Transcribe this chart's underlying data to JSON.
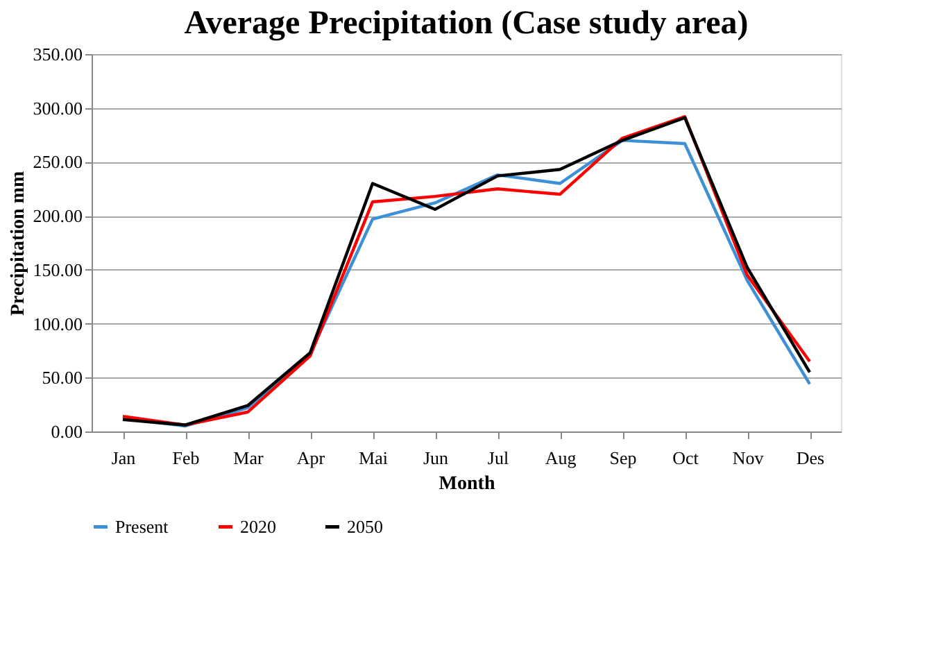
{
  "chart_data": {
    "type": "line",
    "title": "Average Precipitation (Case study area)",
    "xlabel": "Month",
    "ylabel": "Precipitation mm",
    "categories": [
      "Jan",
      "Feb",
      "Mar",
      "Apr",
      "Mai",
      "Jun",
      "Jul",
      "Aug",
      "Sep",
      "Oct",
      "Nov",
      "Des"
    ],
    "series": [
      {
        "name": "Present",
        "color": "#3d8fd6",
        "values": [
          12,
          5,
          22,
          72,
          197,
          212,
          238,
          230,
          270,
          267,
          140,
          44
        ]
      },
      {
        "name": "2020",
        "color": "#ff0000",
        "values": [
          14,
          6,
          18,
          70,
          213,
          218,
          225,
          220,
          272,
          292,
          145,
          65
        ]
      },
      {
        "name": "2050",
        "color": "#000000",
        "values": [
          11,
          6,
          24,
          73,
          230,
          206,
          237,
          243,
          270,
          291,
          152,
          55
        ]
      }
    ],
    "ylim": [
      0,
      350
    ],
    "yticks": [
      {
        "value": 0,
        "label": "0.00"
      },
      {
        "value": 50,
        "label": "50.00"
      },
      {
        "value": 100,
        "label": "100.00"
      },
      {
        "value": 150,
        "label": "150.00"
      },
      {
        "value": 200,
        "label": "200.00"
      },
      {
        "value": 250,
        "label": "250.00"
      },
      {
        "value": 300,
        "label": "300.00"
      },
      {
        "value": 350,
        "label": "350.00"
      }
    ],
    "grid": "y",
    "legend": "bottom",
    "marker": "none",
    "line_style": "solid"
  }
}
